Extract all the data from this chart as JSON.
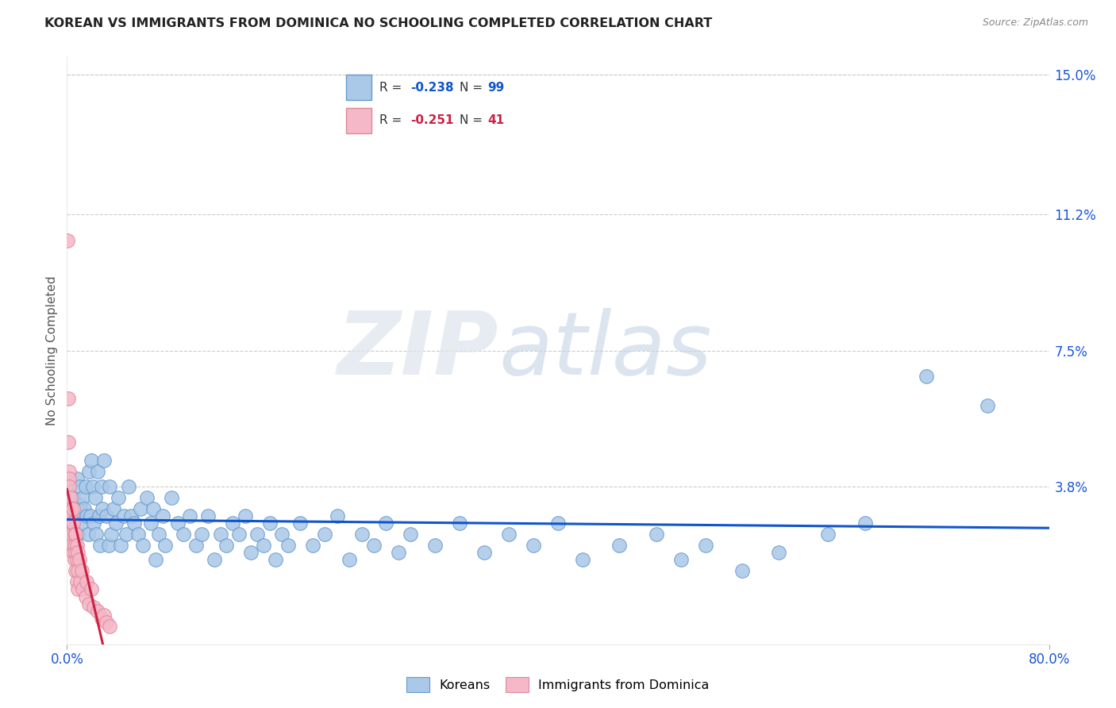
{
  "title": "KOREAN VS IMMIGRANTS FROM DOMINICA NO SCHOOLING COMPLETED CORRELATION CHART",
  "source": "Source: ZipAtlas.com",
  "ylabel": "No Schooling Completed",
  "xlim": [
    0.0,
    0.8
  ],
  "ylim": [
    -0.005,
    0.155
  ],
  "ytick_vals": [
    0.038,
    0.075,
    0.112,
    0.15
  ],
  "ytick_labels": [
    "3.8%",
    "7.5%",
    "11.2%",
    "15.0%"
  ],
  "xtick_vals": [
    0.0,
    0.8
  ],
  "xtick_labels": [
    "0.0%",
    "80.0%"
  ],
  "korean_color": "#aac8e8",
  "dominica_color": "#f5b8c8",
  "korean_edge": "#6699cc",
  "dominica_edge": "#dd8899",
  "korean_line_color": "#1155cc",
  "dominica_line_color": "#cc2244",
  "R_korean": -0.238,
  "N_korean": 99,
  "R_dominica": -0.251,
  "N_dominica": 41,
  "legend_label_1": "Koreans",
  "legend_label_2": "Immigrants from Dominica",
  "background_color": "#ffffff",
  "grid_color": "#cccccc",
  "title_color": "#222222",
  "axis_label_color": "#555555",
  "tick_label_color": "#1a56db",
  "source_color": "#888888",
  "watermark_zip_color": "#dde8f0",
  "watermark_atlas_color": "#c8d8e8",
  "korean_points": [
    [
      0.002,
      0.038
    ],
    [
      0.003,
      0.032
    ],
    [
      0.004,
      0.028
    ],
    [
      0.005,
      0.035
    ],
    [
      0.006,
      0.03
    ],
    [
      0.007,
      0.022
    ],
    [
      0.008,
      0.04
    ],
    [
      0.009,
      0.025
    ],
    [
      0.01,
      0.038
    ],
    [
      0.011,
      0.033
    ],
    [
      0.012,
      0.028
    ],
    [
      0.013,
      0.035
    ],
    [
      0.014,
      0.032
    ],
    [
      0.015,
      0.038
    ],
    [
      0.016,
      0.03
    ],
    [
      0.017,
      0.025
    ],
    [
      0.018,
      0.042
    ],
    [
      0.019,
      0.03
    ],
    [
      0.02,
      0.045
    ],
    [
      0.021,
      0.038
    ],
    [
      0.022,
      0.028
    ],
    [
      0.023,
      0.035
    ],
    [
      0.024,
      0.025
    ],
    [
      0.025,
      0.042
    ],
    [
      0.026,
      0.03
    ],
    [
      0.027,
      0.022
    ],
    [
      0.028,
      0.038
    ],
    [
      0.029,
      0.032
    ],
    [
      0.03,
      0.045
    ],
    [
      0.032,
      0.03
    ],
    [
      0.034,
      0.022
    ],
    [
      0.035,
      0.038
    ],
    [
      0.036,
      0.025
    ],
    [
      0.038,
      0.032
    ],
    [
      0.04,
      0.028
    ],
    [
      0.042,
      0.035
    ],
    [
      0.044,
      0.022
    ],
    [
      0.046,
      0.03
    ],
    [
      0.048,
      0.025
    ],
    [
      0.05,
      0.038
    ],
    [
      0.052,
      0.03
    ],
    [
      0.055,
      0.028
    ],
    [
      0.058,
      0.025
    ],
    [
      0.06,
      0.032
    ],
    [
      0.062,
      0.022
    ],
    [
      0.065,
      0.035
    ],
    [
      0.068,
      0.028
    ],
    [
      0.07,
      0.032
    ],
    [
      0.072,
      0.018
    ],
    [
      0.075,
      0.025
    ],
    [
      0.078,
      0.03
    ],
    [
      0.08,
      0.022
    ],
    [
      0.085,
      0.035
    ],
    [
      0.09,
      0.028
    ],
    [
      0.095,
      0.025
    ],
    [
      0.1,
      0.03
    ],
    [
      0.105,
      0.022
    ],
    [
      0.11,
      0.025
    ],
    [
      0.115,
      0.03
    ],
    [
      0.12,
      0.018
    ],
    [
      0.125,
      0.025
    ],
    [
      0.13,
      0.022
    ],
    [
      0.135,
      0.028
    ],
    [
      0.14,
      0.025
    ],
    [
      0.145,
      0.03
    ],
    [
      0.15,
      0.02
    ],
    [
      0.155,
      0.025
    ],
    [
      0.16,
      0.022
    ],
    [
      0.165,
      0.028
    ],
    [
      0.17,
      0.018
    ],
    [
      0.175,
      0.025
    ],
    [
      0.18,
      0.022
    ],
    [
      0.19,
      0.028
    ],
    [
      0.2,
      0.022
    ],
    [
      0.21,
      0.025
    ],
    [
      0.22,
      0.03
    ],
    [
      0.23,
      0.018
    ],
    [
      0.24,
      0.025
    ],
    [
      0.25,
      0.022
    ],
    [
      0.26,
      0.028
    ],
    [
      0.27,
      0.02
    ],
    [
      0.28,
      0.025
    ],
    [
      0.3,
      0.022
    ],
    [
      0.32,
      0.028
    ],
    [
      0.34,
      0.02
    ],
    [
      0.36,
      0.025
    ],
    [
      0.38,
      0.022
    ],
    [
      0.4,
      0.028
    ],
    [
      0.42,
      0.018
    ],
    [
      0.45,
      0.022
    ],
    [
      0.48,
      0.025
    ],
    [
      0.5,
      0.018
    ],
    [
      0.52,
      0.022
    ],
    [
      0.55,
      0.015
    ],
    [
      0.58,
      0.02
    ],
    [
      0.62,
      0.025
    ],
    [
      0.65,
      0.028
    ],
    [
      0.7,
      0.068
    ],
    [
      0.75,
      0.06
    ]
  ],
  "dominica_points": [
    [
      0.0005,
      0.105
    ],
    [
      0.001,
      0.062
    ],
    [
      0.001,
      0.05
    ],
    [
      0.002,
      0.042
    ],
    [
      0.002,
      0.04
    ],
    [
      0.002,
      0.038
    ],
    [
      0.003,
      0.035
    ],
    [
      0.003,
      0.032
    ],
    [
      0.003,
      0.03
    ],
    [
      0.004,
      0.028
    ],
    [
      0.004,
      0.025
    ],
    [
      0.004,
      0.022
    ],
    [
      0.005,
      0.032
    ],
    [
      0.005,
      0.028
    ],
    [
      0.005,
      0.02
    ],
    [
      0.006,
      0.025
    ],
    [
      0.006,
      0.022
    ],
    [
      0.006,
      0.018
    ],
    [
      0.007,
      0.025
    ],
    [
      0.007,
      0.02
    ],
    [
      0.007,
      0.015
    ],
    [
      0.008,
      0.022
    ],
    [
      0.008,
      0.018
    ],
    [
      0.008,
      0.012
    ],
    [
      0.009,
      0.02
    ],
    [
      0.009,
      0.015
    ],
    [
      0.009,
      0.01
    ],
    [
      0.01,
      0.018
    ],
    [
      0.011,
      0.012
    ],
    [
      0.012,
      0.015
    ],
    [
      0.013,
      0.01
    ],
    [
      0.015,
      0.008
    ],
    [
      0.016,
      0.012
    ],
    [
      0.018,
      0.006
    ],
    [
      0.02,
      0.01
    ],
    [
      0.022,
      0.005
    ],
    [
      0.025,
      0.004
    ],
    [
      0.028,
      0.002
    ],
    [
      0.03,
      0.003
    ],
    [
      0.032,
      0.001
    ],
    [
      0.035,
      0.0
    ]
  ],
  "dominica_line_xlim": [
    0.0,
    0.2
  ]
}
